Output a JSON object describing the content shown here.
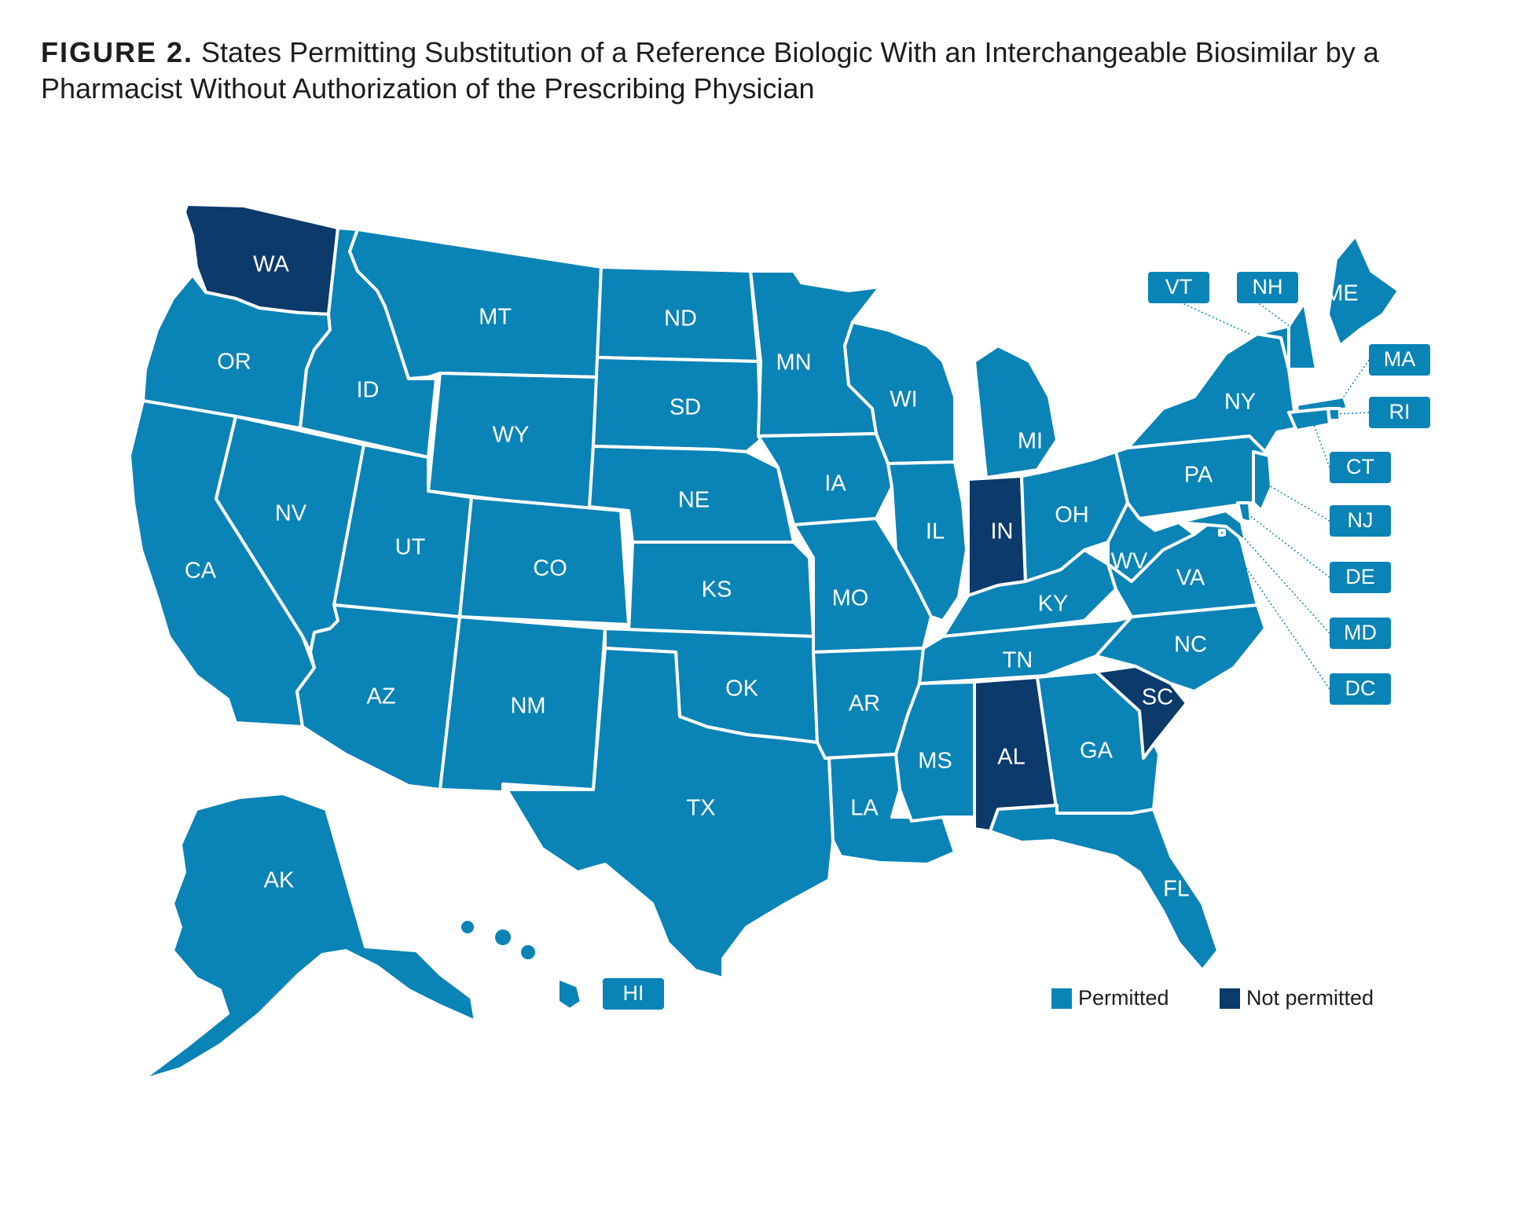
{
  "title": {
    "label": "FIGURE 2.",
    "text": "States Permitting Substitution of a Reference Biologic With an Interchangeable Biosimilar by a Pharmacist Without Authorization of the Prescribing Physician"
  },
  "colors": {
    "permitted": "#0a83b6",
    "not_permitted": "#0b3a6b",
    "border": "#ffffff"
  },
  "states": {
    "WA": "not_permitted",
    "OR": "permitted",
    "CA": "permitted",
    "ID": "permitted",
    "NV": "permitted",
    "MT": "permitted",
    "WY": "permitted",
    "UT": "permitted",
    "AZ": "permitted",
    "CO": "permitted",
    "NM": "permitted",
    "ND": "permitted",
    "SD": "permitted",
    "NE": "permitted",
    "KS": "permitted",
    "OK": "permitted",
    "TX": "permitted",
    "MN": "permitted",
    "IA": "permitted",
    "MO": "permitted",
    "AR": "permitted",
    "LA": "permitted",
    "WI": "permitted",
    "IL": "permitted",
    "MI": "permitted",
    "IN": "not_permitted",
    "OH": "permitted",
    "KY": "permitted",
    "TN": "permitted",
    "MS": "permitted",
    "AL": "not_permitted",
    "GA": "permitted",
    "FL": "permitted",
    "SC": "not_permitted",
    "NC": "permitted",
    "VA": "permitted",
    "WV": "permitted",
    "PA": "permitted",
    "NY": "permitted",
    "ME": "permitted",
    "AK": "permitted",
    "HI": "permitted",
    "VT": "permitted",
    "NH": "permitted",
    "MA": "permitted",
    "RI": "permitted",
    "CT": "permitted",
    "NJ": "permitted",
    "DE": "permitted",
    "MD": "permitted",
    "DC": "permitted"
  },
  "legend": [
    {
      "key": "permitted",
      "label": "Permitted"
    },
    {
      "key": "not_permitted",
      "label": "Not permitted"
    }
  ]
}
